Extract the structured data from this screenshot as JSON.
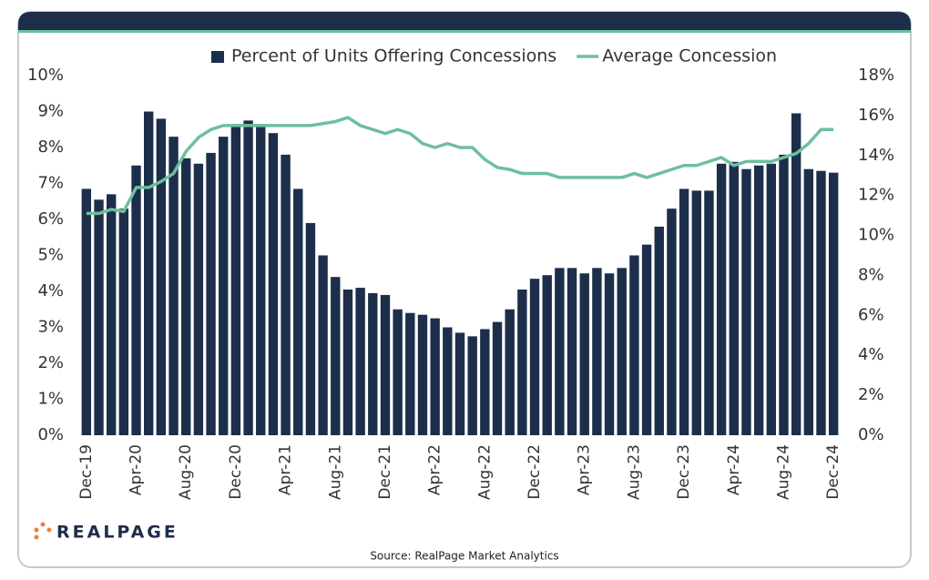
{
  "chart_data": {
    "type": "bar-line",
    "categories": [
      "Dec-19",
      null,
      null,
      null,
      "Apr-20",
      null,
      null,
      null,
      "Aug-20",
      null,
      null,
      null,
      "Dec-20",
      null,
      null,
      null,
      "Apr-21",
      null,
      null,
      null,
      "Aug-21",
      null,
      null,
      null,
      "Dec-21",
      null,
      null,
      null,
      "Apr-22",
      null,
      null,
      null,
      "Aug-22",
      null,
      null,
      null,
      "Dec-22",
      null,
      null,
      null,
      "Apr-23",
      null,
      null,
      null,
      "Aug-23",
      null,
      null,
      null,
      "Dec-23",
      null,
      null,
      null,
      "Apr-24",
      null,
      null,
      null,
      "Aug-24",
      null,
      null,
      null,
      "Dec-24"
    ],
    "series": [
      {
        "name": "Percent of Units Offering Concessions",
        "type": "bar",
        "color": "#1c2e4a",
        "values": [
          6.85,
          6.55,
          6.7,
          6.3,
          7.5,
          9.0,
          8.8,
          8.3,
          7.7,
          7.55,
          7.85,
          8.3,
          8.65,
          8.75,
          8.65,
          8.4,
          7.8,
          6.85,
          5.9,
          5.0,
          4.4,
          4.05,
          4.1,
          3.95,
          3.9,
          3.5,
          3.4,
          3.35,
          3.25,
          3.0,
          2.85,
          2.75,
          2.95,
          3.15,
          3.5,
          4.05,
          4.35,
          4.45,
          4.65,
          4.65,
          4.5,
          4.65,
          4.5,
          4.65,
          5.0,
          5.3,
          5.8,
          6.3,
          6.85,
          6.8,
          6.8,
          7.55,
          7.6,
          7.4,
          7.5,
          7.55,
          7.8,
          8.95,
          7.4,
          7.35,
          7.3
        ]
      },
      {
        "name": "Average Concession",
        "type": "line",
        "axis": "y2",
        "color": "#6dbf9f",
        "values": [
          11.1,
          11.1,
          11.3,
          11.2,
          12.4,
          12.4,
          12.7,
          13.1,
          14.2,
          14.9,
          15.3,
          15.5,
          15.5,
          15.5,
          15.5,
          15.5,
          15.5,
          15.5,
          15.5,
          15.6,
          15.7,
          15.9,
          15.5,
          15.3,
          15.1,
          15.3,
          15.1,
          14.6,
          14.4,
          14.6,
          14.4,
          14.4,
          13.8,
          13.4,
          13.3,
          13.1,
          13.1,
          13.1,
          12.9,
          12.9,
          12.9,
          12.9,
          12.9,
          12.9,
          13.1,
          12.9,
          13.1,
          13.3,
          13.5,
          13.5,
          13.7,
          13.9,
          13.5,
          13.7,
          13.7,
          13.7,
          13.9,
          14.1,
          14.6,
          15.3,
          15.3
        ]
      }
    ],
    "ylim": [
      0,
      10
    ],
    "yticks": [
      {
        "value": 0,
        "label": "0%"
      },
      {
        "value": 1,
        "label": "1%"
      },
      {
        "value": 2,
        "label": "2%"
      },
      {
        "value": 3,
        "label": "3%"
      },
      {
        "value": 4,
        "label": "4%"
      },
      {
        "value": 5,
        "label": "5%"
      },
      {
        "value": 6,
        "label": "6%"
      },
      {
        "value": 7,
        "label": "7%"
      },
      {
        "value": 8,
        "label": "8%"
      },
      {
        "value": 9,
        "label": "9%"
      },
      {
        "value": 10,
        "label": "10%"
      }
    ],
    "y2lim": [
      0,
      18
    ],
    "y2ticks": [
      {
        "value": 0,
        "label": "0%"
      },
      {
        "value": 2,
        "label": "2%"
      },
      {
        "value": 4,
        "label": "4%"
      },
      {
        "value": 6,
        "label": "6%"
      },
      {
        "value": 8,
        "label": "8%"
      },
      {
        "value": 10,
        "label": "10%"
      },
      {
        "value": 12,
        "label": "12%"
      },
      {
        "value": 14,
        "label": "14%"
      },
      {
        "value": 16,
        "label": "16%"
      },
      {
        "value": 18,
        "label": "18%"
      }
    ],
    "legend": "top",
    "logo": "REALPAGE",
    "source": "Source: RealPage Market Analytics"
  }
}
